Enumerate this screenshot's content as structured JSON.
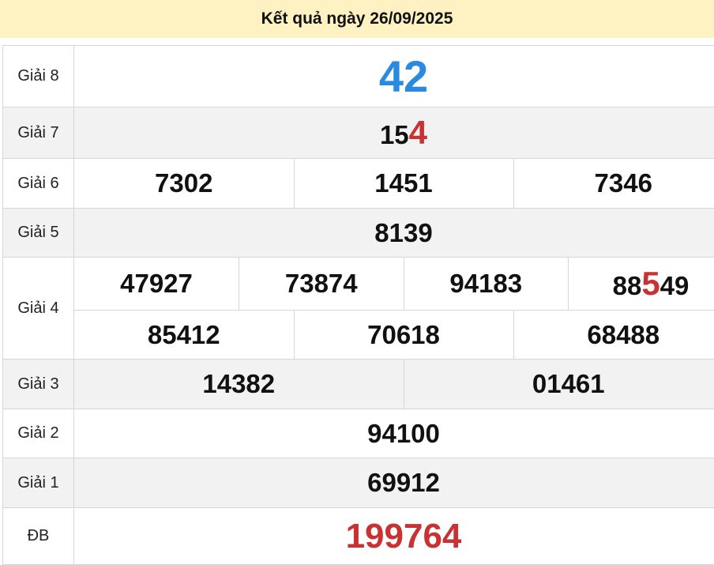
{
  "title": "Kết quả ngày 26/09/2025",
  "colors": {
    "header_bg": "#fff2c2",
    "highlight": "#c83232",
    "giai8": "#2a8ae0",
    "row_alt": "#f2f2f2"
  },
  "prizes": {
    "g8": {
      "label": "Giải 8",
      "numbers": [
        {
          "pre": "42",
          "hl": "",
          "post": ""
        }
      ]
    },
    "g7": {
      "label": "Giải 7",
      "numbers": [
        {
          "pre": "15",
          "hl": "4",
          "post": ""
        }
      ]
    },
    "g6": {
      "label": "Giải 6",
      "numbers": [
        {
          "pre": "7302",
          "hl": "",
          "post": ""
        },
        {
          "pre": "1451",
          "hl": "",
          "post": ""
        },
        {
          "pre": "7346",
          "hl": "",
          "post": ""
        }
      ]
    },
    "g5": {
      "label": "Giải 5",
      "numbers": [
        {
          "pre": "8139",
          "hl": "",
          "post": ""
        }
      ]
    },
    "g4": {
      "label": "Giải 4",
      "numbers": [
        {
          "pre": "47927",
          "hl": "",
          "post": ""
        },
        {
          "pre": "73874",
          "hl": "",
          "post": ""
        },
        {
          "pre": "94183",
          "hl": "",
          "post": ""
        },
        {
          "pre": "88",
          "hl": "5",
          "post": "49"
        },
        {
          "pre": "85412",
          "hl": "",
          "post": ""
        },
        {
          "pre": "70618",
          "hl": "",
          "post": ""
        },
        {
          "pre": "68488",
          "hl": "",
          "post": ""
        }
      ]
    },
    "g3": {
      "label": "Giải 3",
      "numbers": [
        {
          "pre": "14382",
          "hl": "",
          "post": ""
        },
        {
          "pre": "01461",
          "hl": "",
          "post": ""
        }
      ]
    },
    "g2": {
      "label": "Giải 2",
      "numbers": [
        {
          "pre": "94100",
          "hl": "",
          "post": ""
        }
      ]
    },
    "g1": {
      "label": "Giải 1",
      "numbers": [
        {
          "pre": "69912",
          "hl": "",
          "post": ""
        }
      ]
    },
    "db": {
      "label": "ĐB",
      "numbers": [
        {
          "pre": "199764",
          "hl": "",
          "post": ""
        }
      ]
    }
  }
}
